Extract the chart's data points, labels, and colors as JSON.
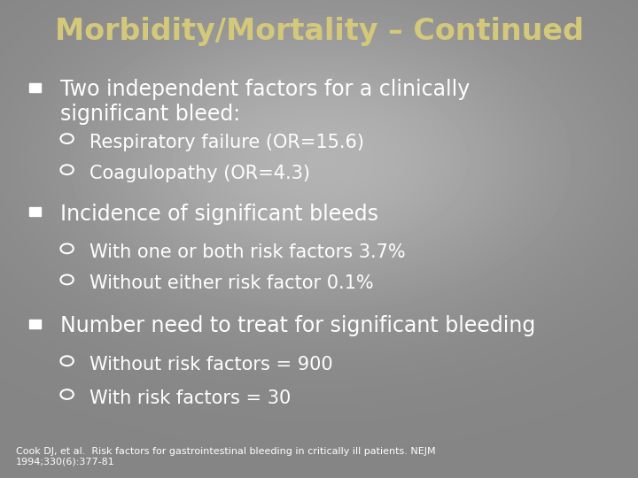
{
  "title": "Morbidity/Mortality – Continued",
  "title_color": "#d4c87a",
  "title_fontsize": 24,
  "bullet1": "Two independent factors for a clinically\nsignificant bleed:",
  "sub1a": "Respiratory failure (OR=15.6)",
  "sub1b": "Coagulopathy (OR=4.3)",
  "bullet2": "Incidence of significant bleeds",
  "sub2a": "With one or both risk factors 3.7%",
  "sub2b": "Without either risk factor 0.1%",
  "bullet3": "Number need to treat for significant bleeding",
  "sub3a": "Without risk factors = 900",
  "sub3b": "With risk factors = 30",
  "footnote": "Cook DJ, et al.  Risk factors for gastrointestinal bleeding in critically ill patients. NEJM\n1994;330(6):377-81",
  "text_color": "#ffffff",
  "main_fontsize": 17,
  "sub_fontsize": 15,
  "footnote_fontsize": 8,
  "bg_base": 0.52,
  "bg_light": 0.72,
  "bg_dark": 0.32
}
